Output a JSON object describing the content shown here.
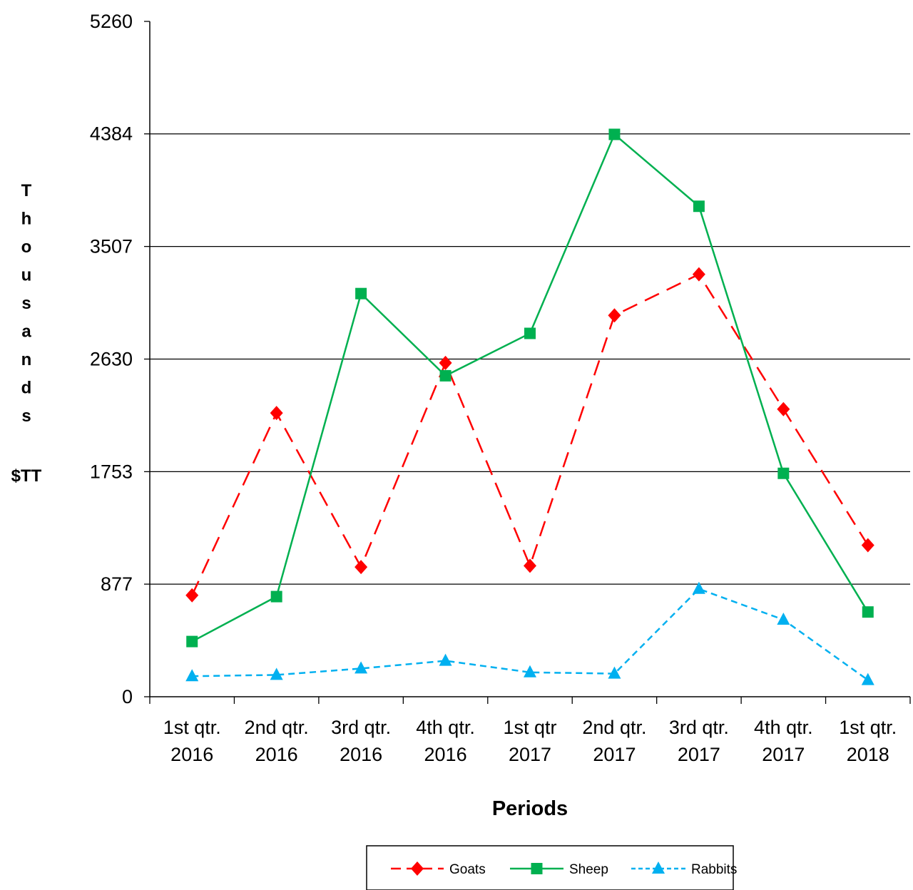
{
  "chart_data": {
    "type": "line",
    "categories": [
      [
        "1st qtr.",
        "2016"
      ],
      [
        "2nd qtr.",
        "2016"
      ],
      [
        "3rd qtr.",
        "2016"
      ],
      [
        "4th qtr.",
        "2016"
      ],
      [
        "1st qtr",
        "2017"
      ],
      [
        "2nd qtr.",
        "2017"
      ],
      [
        "3rd qtr.",
        "2017"
      ],
      [
        "4th qtr.",
        "2017"
      ],
      [
        "1st qtr.",
        "2018"
      ]
    ],
    "series": [
      {
        "name": "Goats",
        "color": "#ff0000",
        "line_style": "dashed",
        "marker": "diamond",
        "values": [
          790,
          2210,
          1010,
          2600,
          1020,
          2970,
          3290,
          2240,
          1180
        ]
      },
      {
        "name": "Sheep",
        "color": "#00b050",
        "line_style": "solid",
        "marker": "square",
        "values": [
          430,
          780,
          3140,
          2500,
          2830,
          4380,
          3820,
          1740,
          660
        ]
      },
      {
        "name": "Rabbits",
        "color": "#00b0f0",
        "line_style": "dotted",
        "marker": "triangle",
        "values": [
          160,
          170,
          220,
          280,
          190,
          180,
          840,
          600,
          130
        ]
      }
    ],
    "yticks": [
      "0",
      "877",
      "1753",
      "2630",
      "3507",
      "4384",
      "5260"
    ],
    "ylim": [
      0,
      5260
    ],
    "ylabel_letters": [
      "T",
      "h",
      "o",
      "u",
      "s",
      "a",
      "n",
      "d",
      "s"
    ],
    "ylabel_unit": "$TT",
    "xlabel": "Periods",
    "legend_position": "bottom",
    "grid": "horizontal"
  }
}
